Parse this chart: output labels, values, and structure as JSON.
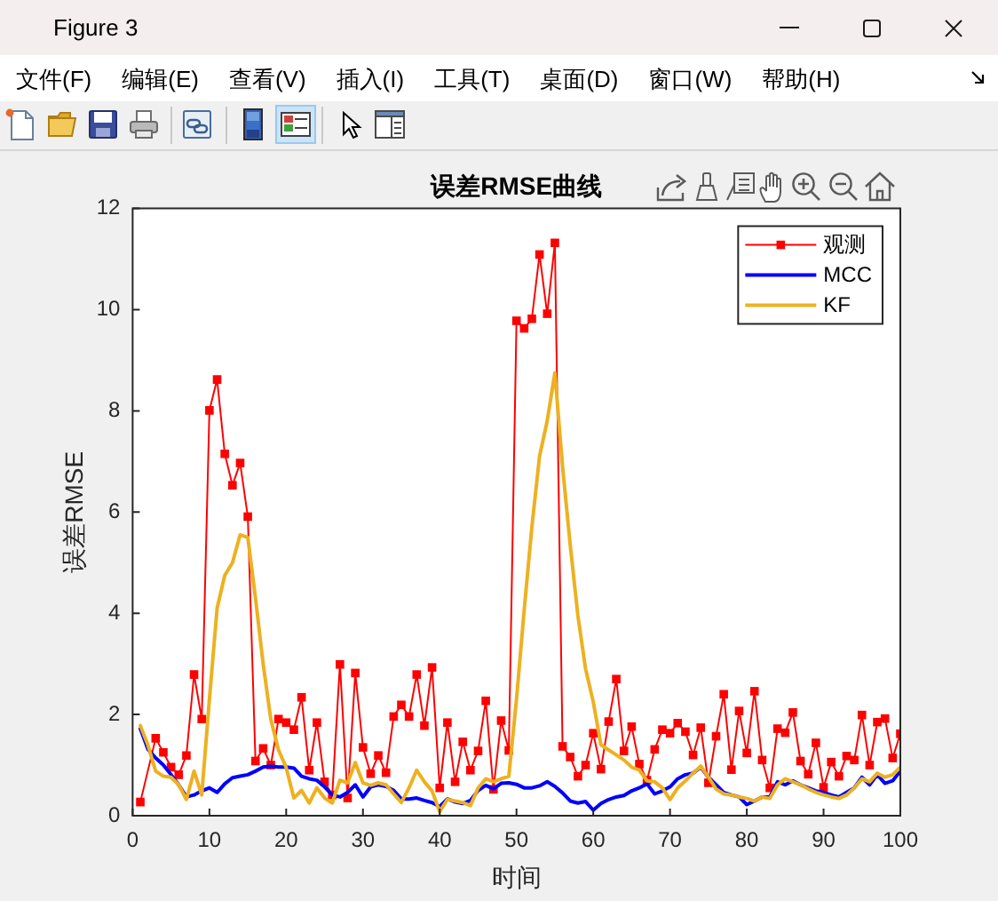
{
  "chart_data": {
    "type": "line",
    "title": "误差RMSE曲线",
    "xlabel": "时间",
    "ylabel": "误差RMSE",
    "x": [
      1,
      2,
      3,
      4,
      5,
      6,
      7,
      8,
      9,
      10,
      11,
      12,
      13,
      14,
      15,
      16,
      17,
      18,
      19,
      20,
      21,
      22,
      23,
      24,
      25,
      26,
      27,
      28,
      29,
      30,
      31,
      32,
      33,
      34,
      35,
      36,
      37,
      38,
      39,
      40,
      41,
      42,
      43,
      44,
      45,
      46,
      47,
      48,
      49,
      50,
      51,
      52,
      53,
      54,
      55,
      56,
      57,
      58,
      59,
      60,
      61,
      62,
      63,
      64,
      65,
      66,
      67,
      68,
      69,
      70,
      71,
      72,
      73,
      74,
      75,
      76,
      77,
      78,
      79,
      80,
      81,
      82,
      83,
      84,
      85,
      86,
      87,
      88,
      89,
      90,
      91,
      92,
      93,
      94,
      95,
      96,
      97,
      98,
      99,
      100
    ],
    "series": [
      {
        "name": "观测",
        "color": "#ff0000",
        "marker": "square",
        "x": [
          1,
          3,
          4,
          5,
          6,
          7,
          8,
          9,
          10,
          11,
          12,
          13,
          14,
          15,
          16,
          17,
          18,
          19,
          20,
          21,
          22,
          23,
          24,
          25,
          26,
          27,
          28,
          29,
          30,
          31,
          32,
          33,
          34,
          35,
          36,
          37,
          38,
          39,
          40,
          41,
          42,
          43,
          44,
          45,
          46,
          47,
          48,
          49,
          50,
          51,
          52,
          53,
          54,
          55,
          56,
          57,
          58,
          59,
          60,
          61,
          62,
          63,
          64,
          65,
          66,
          67,
          68,
          69,
          70,
          71,
          72,
          73,
          74,
          75,
          76,
          77,
          78,
          79,
          80,
          81,
          82,
          83,
          84,
          85,
          86,
          87,
          88,
          89,
          90,
          91,
          92,
          93,
          94,
          95,
          96,
          97,
          98,
          99,
          100
        ],
        "values": [
          0.27,
          1.53,
          1.25,
          0.96,
          0.81,
          1.19,
          2.79,
          1.91,
          8.01,
          8.62,
          7.15,
          6.53,
          6.97,
          5.91,
          1.08,
          1.33,
          1.0,
          1.91,
          1.84,
          1.7,
          2.34,
          0.9,
          1.84,
          0.67,
          0.41,
          2.99,
          0.35,
          2.82,
          1.35,
          0.83,
          1.19,
          0.85,
          1.96,
          2.19,
          1.96,
          2.79,
          1.78,
          2.93,
          0.55,
          1.84,
          0.67,
          1.46,
          0.9,
          1.28,
          2.27,
          0.52,
          1.88,
          1.29,
          9.78,
          9.63,
          9.82,
          11.09,
          9.92,
          11.32,
          1.37,
          1.16,
          0.78,
          1.0,
          1.63,
          0.92,
          1.86,
          2.7,
          1.28,
          1.76,
          1.02,
          0.7,
          1.31,
          1.7,
          1.63,
          1.83,
          1.66,
          1.2,
          1.74,
          0.65,
          1.57,
          2.4,
          0.91,
          2.07,
          1.24,
          2.46,
          1.1,
          0.55,
          1.72,
          1.64,
          2.04,
          1.08,
          0.82,
          1.44,
          0.56,
          1.06,
          0.78,
          1.18,
          1.1,
          1.99,
          1.0,
          1.85,
          1.92,
          1.14,
          1.62
        ]
      },
      {
        "name": "MCC",
        "color": "#0000ff",
        "values": [
          1.72,
          1.31,
          1.14,
          1.0,
          0.81,
          0.61,
          0.37,
          0.41,
          0.49,
          0.55,
          0.46,
          0.63,
          0.75,
          0.78,
          0.81,
          0.88,
          0.96,
          0.98,
          0.96,
          0.96,
          0.94,
          0.78,
          0.73,
          0.7,
          0.57,
          0.41,
          0.37,
          0.46,
          0.61,
          0.37,
          0.57,
          0.61,
          0.58,
          0.5,
          0.33,
          0.33,
          0.35,
          0.3,
          0.26,
          0.18,
          0.33,
          0.27,
          0.24,
          0.3,
          0.5,
          0.6,
          0.53,
          0.64,
          0.65,
          0.62,
          0.55,
          0.55,
          0.59,
          0.67,
          0.58,
          0.45,
          0.29,
          0.25,
          0.28,
          0.11,
          0.24,
          0.32,
          0.37,
          0.4,
          0.49,
          0.55,
          0.63,
          0.43,
          0.49,
          0.57,
          0.73,
          0.81,
          0.84,
          0.96,
          0.76,
          0.61,
          0.46,
          0.41,
          0.37,
          0.22,
          0.29,
          0.37,
          0.37,
          0.67,
          0.61,
          0.69,
          0.61,
          0.55,
          0.49,
          0.46,
          0.41,
          0.37,
          0.46,
          0.55,
          0.76,
          0.61,
          0.81,
          0.64,
          0.69,
          0.88
        ]
      },
      {
        "name": "KF",
        "color": "#edb120",
        "values": [
          1.78,
          1.39,
          0.88,
          0.78,
          0.76,
          0.61,
          0.32,
          0.88,
          0.41,
          2.3,
          4.1,
          4.75,
          5.0,
          5.55,
          5.5,
          4.3,
          3.0,
          1.9,
          1.3,
          0.95,
          0.35,
          0.5,
          0.25,
          0.55,
          0.35,
          0.25,
          0.7,
          0.65,
          1.05,
          0.65,
          0.6,
          0.65,
          0.61,
          0.43,
          0.26,
          0.55,
          0.9,
          0.67,
          0.49,
          0.08,
          0.32,
          0.29,
          0.26,
          0.2,
          0.55,
          0.73,
          0.67,
          0.73,
          0.78,
          2.3,
          4.06,
          5.7,
          7.1,
          7.8,
          8.75,
          6.9,
          5.35,
          3.95,
          2.9,
          2.25,
          1.4,
          1.3,
          1.2,
          1.1,
          0.96,
          0.9,
          0.69,
          0.67,
          0.55,
          0.32,
          0.55,
          0.69,
          0.84,
          0.98,
          0.76,
          0.53,
          0.43,
          0.41,
          0.37,
          0.34,
          0.29,
          0.37,
          0.34,
          0.61,
          0.73,
          0.67,
          0.61,
          0.53,
          0.46,
          0.41,
          0.37,
          0.34,
          0.41,
          0.55,
          0.73,
          0.67,
          0.84,
          0.76,
          0.81,
          0.96
        ]
      }
    ],
    "xlim": [
      0,
      100
    ],
    "xticks": [
      0,
      10,
      20,
      30,
      40,
      50,
      60,
      70,
      80,
      90,
      100
    ],
    "ylim": [
      0,
      12
    ],
    "yticks": [
      0,
      2,
      4,
      6,
      8,
      10,
      12
    ],
    "legend": "top right",
    "annotations": [
      "Figure 3",
      "文件(F)",
      "编辑(E)",
      "查看(V)",
      "插入(I)",
      "工具(T)",
      "桌面(D)",
      "窗口(W)",
      "帮助(H)"
    ]
  }
}
